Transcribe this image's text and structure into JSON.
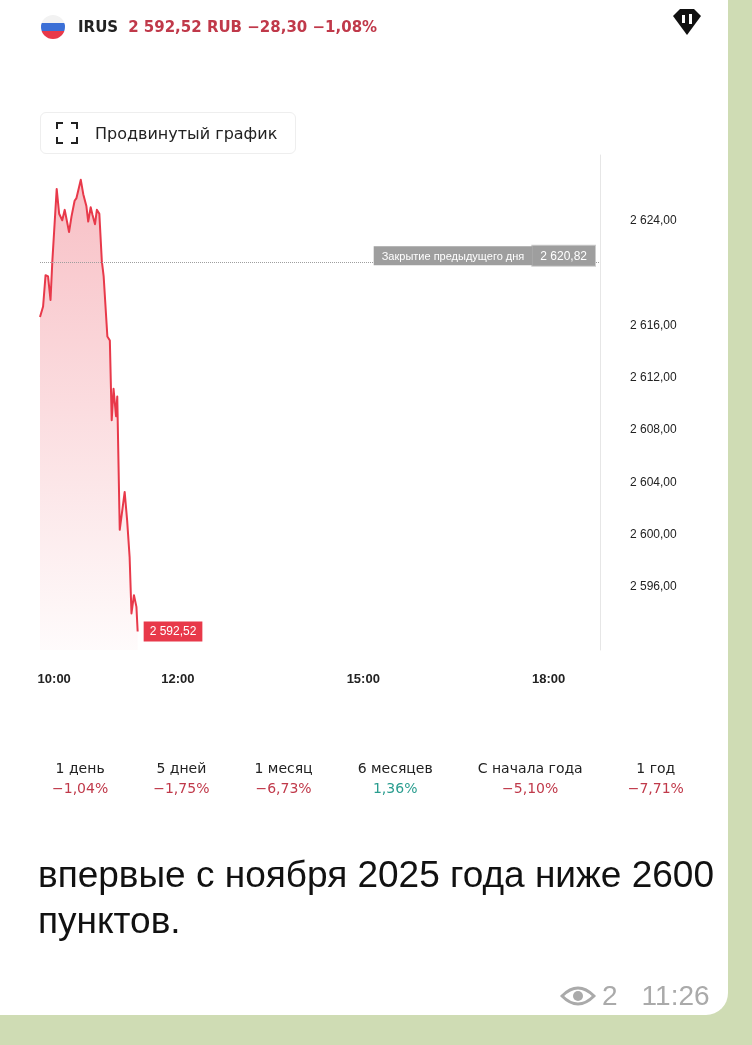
{
  "chart_data": [
    {
      "type": "area",
      "title": "IRUS",
      "subtitle": "2 592,52 RUB −28,30 −1,08%",
      "annotations": [
        "Продвинутый график",
        {
          "text": "2 620,82",
          "y": 2620.82
        }
      ],
      "x": [
        9.77,
        9.82,
        9.86,
        9.9,
        9.94,
        9.97,
        10.04,
        10.08,
        10.13,
        10.17,
        10.24,
        10.28,
        10.33,
        10.36,
        10.43,
        10.47,
        10.52,
        10.55,
        10.59,
        10.62,
        10.66,
        10.69,
        10.73,
        10.77,
        10.8,
        10.86,
        10.9,
        10.93,
        10.96,
        11.0,
        11.02,
        11.06,
        11.14,
        11.18,
        11.22,
        11.25,
        11.29,
        11.33,
        11.35
      ],
      "series": [
        {
          "color": "#e8394a",
          "values": [
            2616.6,
            2617.4,
            2619.8,
            2619.7,
            2617.9,
            2620.9,
            2626.4,
            2624.5,
            2624.0,
            2624.8,
            2623.1,
            2624.3,
            2625.5,
            2625.7,
            2627.1,
            2626.0,
            2625.1,
            2623.9,
            2625.0,
            2624.4,
            2623.7,
            2624.8,
            2624.5,
            2620.9,
            2619.7,
            2615.1,
            2614.8,
            2608.7,
            2611.1,
            2609.0,
            2610.5,
            2600.3,
            2603.2,
            2601.0,
            2598.2,
            2593.9,
            2595.3,
            2594.4,
            2592.52
          ],
          "value_labels": [
            null,
            null,
            null,
            null,
            null,
            null,
            null,
            null,
            null,
            null,
            null,
            null,
            null,
            null,
            null,
            null,
            null,
            null,
            null,
            null,
            null,
            null,
            null,
            null,
            null,
            null,
            null,
            null,
            null,
            null,
            null,
            null,
            null,
            null,
            null,
            null,
            null,
            null,
            "2 592,52"
          ]
        }
      ],
      "xlim": [
        9.77,
        18.83
      ],
      "xticks": [
        {
          "value": 10,
          "label": "10:00"
        },
        {
          "value": 12,
          "label": "12:00"
        },
        {
          "value": 15,
          "label": "15:00"
        },
        {
          "value": 18,
          "label": "18:00"
        }
      ],
      "ylim": [
        2591.1,
        2629.0
      ],
      "yticks": [
        {
          "value": 2596,
          "label": "2 596,00"
        },
        {
          "value": 2600,
          "label": "2 600,00"
        },
        {
          "value": 2604,
          "label": "2 604,00"
        },
        {
          "value": 2608,
          "label": "2 608,00"
        },
        {
          "value": 2612,
          "label": "2 612,00"
        },
        {
          "value": 2616,
          "label": "2 616,00"
        },
        {
          "value": 2624,
          "label": "2 624,00"
        }
      ],
      "ref_lines": [
        {
          "axis": "y",
          "value": 2620.82,
          "label": "Закрытие предыдущего дня",
          "color": "#9e9e9e",
          "line_style": "dotted"
        }
      ],
      "marker": "none"
    },
    {
      "type": "other",
      "categories": [
        "1 день",
        "5 дней",
        "1 месяц",
        "6 месяцев",
        "С начала года",
        "1 год"
      ],
      "value_labels": [
        "−1,04%",
        "−1,75%",
        "−6,73%",
        "1,36%",
        "−5,10%",
        "−7,71%"
      ],
      "colors": [
        "#c0394a",
        "#c0394a",
        "#c0394a",
        "#2a9d8f",
        "#c0394a",
        "#c0394a"
      ],
      "annotations": [
        "впервые с ноября 2025 года ниже 2600 пунктов.",
        "2",
        "11:26"
      ]
    }
  ]
}
